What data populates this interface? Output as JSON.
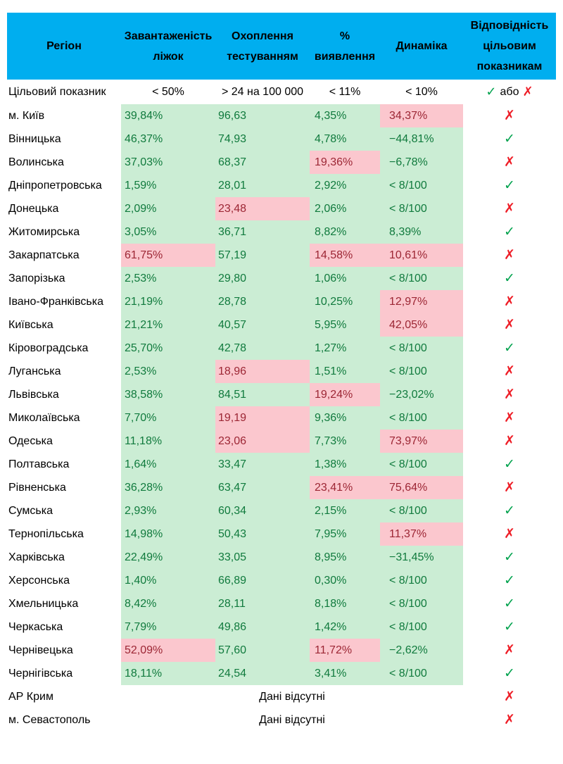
{
  "colors": {
    "header_bg": "#00AEEF",
    "ok_bg": "#CBEDD4",
    "ok_text": "#107A3D",
    "bad_bg": "#FBC7CE",
    "bad_text": "#9C2634",
    "check": "#00A24D",
    "cross": "#EE1C25"
  },
  "table": {
    "header": {
      "region": "Регіон",
      "beds": "Завантаженість\nліжок",
      "testing": "Охоплення\nтестуванням",
      "detection": "%\nвиявлення",
      "dynamics": "Динаміка",
      "compliance": "Відповідність\nцільовим\nпоказникам"
    },
    "target_row": {
      "label": "Цільовий показник",
      "beds": "< 50%",
      "testing": "> 24 на 100 000",
      "detection": "< 11%",
      "dynamics": "< 10%",
      "check_glyph": "✓",
      "or_word": "або",
      "cross_glyph": "✗"
    },
    "marks": {
      "check": "✓",
      "cross": "✗"
    },
    "rows": [
      {
        "region": "м. Київ",
        "cells": [
          {
            "text": "39,84%",
            "state": "ok"
          },
          {
            "text": "96,63",
            "state": "ok"
          },
          {
            "text": "4,35%",
            "state": "ok"
          },
          {
            "text": "34,37%",
            "state": "bad"
          }
        ],
        "mark": "cross"
      },
      {
        "region": "Вінницька",
        "cells": [
          {
            "text": "46,37%",
            "state": "ok"
          },
          {
            "text": "74,93",
            "state": "ok"
          },
          {
            "text": "4,78%",
            "state": "ok"
          },
          {
            "text": "−44,81%",
            "state": "ok"
          }
        ],
        "mark": "check"
      },
      {
        "region": "Волинська",
        "cells": [
          {
            "text": "37,03%",
            "state": "ok"
          },
          {
            "text": "68,37",
            "state": "ok"
          },
          {
            "text": "19,36%",
            "state": "bad"
          },
          {
            "text": "−6,78%",
            "state": "ok"
          }
        ],
        "mark": "cross"
      },
      {
        "region": "Дніпропетровська",
        "cells": [
          {
            "text": "1,59%",
            "state": "ok"
          },
          {
            "text": "28,01",
            "state": "ok"
          },
          {
            "text": "2,92%",
            "state": "ok"
          },
          {
            "text": "< 8/100",
            "state": "ok"
          }
        ],
        "mark": "check"
      },
      {
        "region": "Донецька",
        "cells": [
          {
            "text": "2,09%",
            "state": "ok"
          },
          {
            "text": "23,48",
            "state": "bad"
          },
          {
            "text": "2,06%",
            "state": "ok"
          },
          {
            "text": "< 8/100",
            "state": "ok"
          }
        ],
        "mark": "cross"
      },
      {
        "region": "Житомирська",
        "cells": [
          {
            "text": "3,05%",
            "state": "ok"
          },
          {
            "text": "36,71",
            "state": "ok"
          },
          {
            "text": "8,82%",
            "state": "ok"
          },
          {
            "text": "8,39%",
            "state": "ok"
          }
        ],
        "mark": "check"
      },
      {
        "region": "Закарпатська",
        "cells": [
          {
            "text": "61,75%",
            "state": "bad"
          },
          {
            "text": "57,19",
            "state": "ok"
          },
          {
            "text": "14,58%",
            "state": "bad"
          },
          {
            "text": "10,61%",
            "state": "bad"
          }
        ],
        "mark": "cross"
      },
      {
        "region": "Запорізька",
        "cells": [
          {
            "text": "2,53%",
            "state": "ok"
          },
          {
            "text": "29,80",
            "state": "ok"
          },
          {
            "text": "1,06%",
            "state": "ok"
          },
          {
            "text": "< 8/100",
            "state": "ok"
          }
        ],
        "mark": "check"
      },
      {
        "region": "Івано-Франківська",
        "cells": [
          {
            "text": "21,19%",
            "state": "ok"
          },
          {
            "text": "28,78",
            "state": "ok"
          },
          {
            "text": "10,25%",
            "state": "ok"
          },
          {
            "text": "12,97%",
            "state": "bad"
          }
        ],
        "mark": "cross"
      },
      {
        "region": "Київська",
        "cells": [
          {
            "text": "21,21%",
            "state": "ok"
          },
          {
            "text": "40,57",
            "state": "ok"
          },
          {
            "text": "5,95%",
            "state": "ok"
          },
          {
            "text": "42,05%",
            "state": "bad"
          }
        ],
        "mark": "cross"
      },
      {
        "region": "Кіровоградська",
        "cells": [
          {
            "text": "25,70%",
            "state": "ok"
          },
          {
            "text": "42,78",
            "state": "ok"
          },
          {
            "text": "1,27%",
            "state": "ok"
          },
          {
            "text": "< 8/100",
            "state": "ok"
          }
        ],
        "mark": "check"
      },
      {
        "region": "Луганська",
        "cells": [
          {
            "text": "2,53%",
            "state": "ok"
          },
          {
            "text": "18,96",
            "state": "bad"
          },
          {
            "text": "1,51%",
            "state": "ok"
          },
          {
            "text": "< 8/100",
            "state": "ok"
          }
        ],
        "mark": "cross"
      },
      {
        "region": "Львівська",
        "cells": [
          {
            "text": "38,58%",
            "state": "ok"
          },
          {
            "text": "84,51",
            "state": "ok"
          },
          {
            "text": "19,24%",
            "state": "bad"
          },
          {
            "text": "−23,02%",
            "state": "ok"
          }
        ],
        "mark": "cross"
      },
      {
        "region": "Миколаївська",
        "cells": [
          {
            "text": "7,70%",
            "state": "ok"
          },
          {
            "text": "19,19",
            "state": "bad"
          },
          {
            "text": "9,36%",
            "state": "ok"
          },
          {
            "text": "< 8/100",
            "state": "ok"
          }
        ],
        "mark": "cross"
      },
      {
        "region": "Одеська",
        "cells": [
          {
            "text": "11,18%",
            "state": "ok"
          },
          {
            "text": "23,06",
            "state": "bad"
          },
          {
            "text": "7,73%",
            "state": "ok"
          },
          {
            "text": "73,97%",
            "state": "bad"
          }
        ],
        "mark": "cross"
      },
      {
        "region": "Полтавська",
        "cells": [
          {
            "text": "1,64%",
            "state": "ok"
          },
          {
            "text": "33,47",
            "state": "ok"
          },
          {
            "text": "1,38%",
            "state": "ok"
          },
          {
            "text": "< 8/100",
            "state": "ok"
          }
        ],
        "mark": "check"
      },
      {
        "region": "Рівненська",
        "cells": [
          {
            "text": "36,28%",
            "state": "ok"
          },
          {
            "text": "63,47",
            "state": "ok"
          },
          {
            "text": "23,41%",
            "state": "bad"
          },
          {
            "text": "75,64%",
            "state": "bad"
          }
        ],
        "mark": "cross"
      },
      {
        "region": "Сумська",
        "cells": [
          {
            "text": "2,93%",
            "state": "ok"
          },
          {
            "text": "60,34",
            "state": "ok"
          },
          {
            "text": "2,15%",
            "state": "ok"
          },
          {
            "text": "< 8/100",
            "state": "ok"
          }
        ],
        "mark": "check"
      },
      {
        "region": "Тернопільська",
        "cells": [
          {
            "text": "14,98%",
            "state": "ok"
          },
          {
            "text": "50,43",
            "state": "ok"
          },
          {
            "text": "7,95%",
            "state": "ok"
          },
          {
            "text": "11,37%",
            "state": "bad"
          }
        ],
        "mark": "cross"
      },
      {
        "region": "Харківська",
        "cells": [
          {
            "text": "22,49%",
            "state": "ok"
          },
          {
            "text": "33,05",
            "state": "ok"
          },
          {
            "text": "8,95%",
            "state": "ok"
          },
          {
            "text": "−31,45%",
            "state": "ok"
          }
        ],
        "mark": "check"
      },
      {
        "region": "Херсонська",
        "cells": [
          {
            "text": "1,40%",
            "state": "ok"
          },
          {
            "text": "66,89",
            "state": "ok"
          },
          {
            "text": "0,30%",
            "state": "ok"
          },
          {
            "text": "< 8/100",
            "state": "ok"
          }
        ],
        "mark": "check"
      },
      {
        "region": "Хмельницька",
        "cells": [
          {
            "text": "8,42%",
            "state": "ok"
          },
          {
            "text": "28,11",
            "state": "ok"
          },
          {
            "text": "8,18%",
            "state": "ok"
          },
          {
            "text": "< 8/100",
            "state": "ok"
          }
        ],
        "mark": "check"
      },
      {
        "region": "Черкаська",
        "cells": [
          {
            "text": "7,79%",
            "state": "ok"
          },
          {
            "text": "49,86",
            "state": "ok"
          },
          {
            "text": "1,42%",
            "state": "ok"
          },
          {
            "text": "< 8/100",
            "state": "ok"
          }
        ],
        "mark": "check"
      },
      {
        "region": "Чернівецька",
        "cells": [
          {
            "text": "52,09%",
            "state": "bad"
          },
          {
            "text": "57,60",
            "state": "ok"
          },
          {
            "text": "11,72%",
            "state": "bad"
          },
          {
            "text": "−2,62%",
            "state": "ok"
          }
        ],
        "mark": "cross"
      },
      {
        "region": "Чернігівська",
        "cells": [
          {
            "text": "18,11%",
            "state": "ok"
          },
          {
            "text": "24,54",
            "state": "ok"
          },
          {
            "text": "3,41%",
            "state": "ok"
          },
          {
            "text": "< 8/100",
            "state": "ok"
          }
        ],
        "mark": "check"
      },
      {
        "region": "АР Крим",
        "nodata": "Дані відсутні",
        "mark": "cross"
      },
      {
        "region": "м. Севастополь",
        "nodata": "Дані відсутні",
        "mark": "cross"
      }
    ]
  }
}
